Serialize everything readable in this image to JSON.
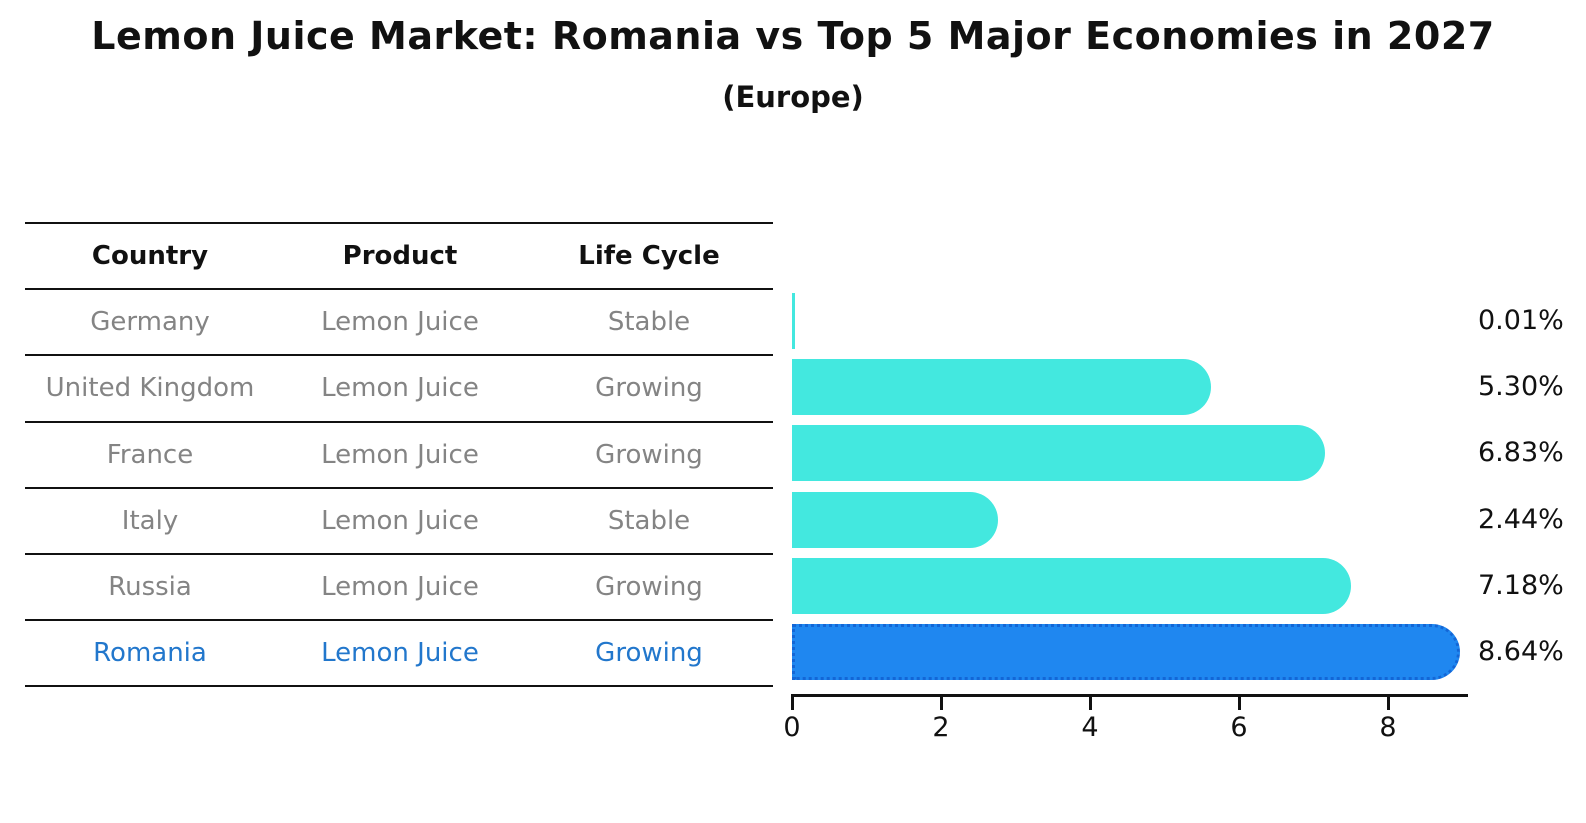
{
  "title": "Lemon Juice Market: Romania vs Top 5 Major Economies in 2027",
  "subtitle": "(Europe)",
  "table": {
    "headers": [
      "Country",
      "Product",
      "Life Cycle"
    ],
    "rows": [
      {
        "country": "Germany",
        "product": "Lemon Juice",
        "life_cycle": "Stable",
        "highlight": false
      },
      {
        "country": "United Kingdom",
        "product": "Lemon Juice",
        "life_cycle": "Growing",
        "highlight": false
      },
      {
        "country": "France",
        "product": "Lemon Juice",
        "life_cycle": "Growing",
        "highlight": false
      },
      {
        "country": "Italy",
        "product": "Lemon Juice",
        "life_cycle": "Stable",
        "highlight": false
      },
      {
        "country": "Russia",
        "product": "Lemon Juice",
        "life_cycle": "Growing",
        "highlight": false
      },
      {
        "country": "Romania",
        "product": "Lemon Juice",
        "life_cycle": "Growing",
        "highlight": true
      }
    ]
  },
  "chart_data": {
    "type": "bar",
    "orientation": "horizontal",
    "title": "Lemon Juice Market: Romania vs Top 5 Major Economies in 2027",
    "subtitle": "(Europe)",
    "categories": [
      "Germany",
      "United Kingdom",
      "France",
      "Italy",
      "Russia",
      "Romania"
    ],
    "values": [
      0.01,
      5.3,
      6.83,
      2.44,
      7.18,
      8.64
    ],
    "value_labels": [
      "0.01%",
      "5.30%",
      "6.83%",
      "2.44%",
      "7.18%",
      "8.64%"
    ],
    "highlight_index": 5,
    "xlabel": "",
    "ylabel": "",
    "xticks": [
      0,
      2,
      4,
      6,
      8
    ],
    "xlim": [
      0,
      9.1
    ],
    "grid": false,
    "legend": false,
    "colors": {
      "bar": "#43e8df",
      "highlight_bar": "#1f87f0",
      "highlight_border": "#1366d6",
      "row_text": "#848484",
      "highlight_text": "#2277cc",
      "header_text": "#111111"
    }
  }
}
